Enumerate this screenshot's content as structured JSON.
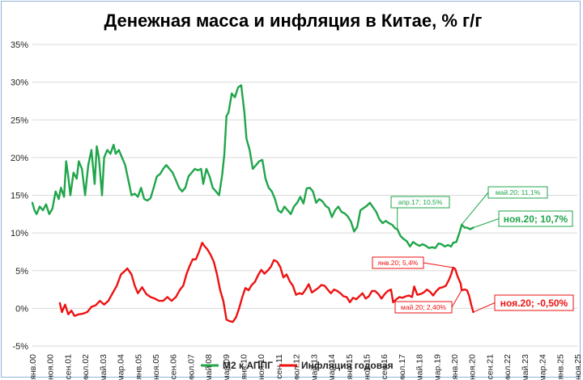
{
  "chart_data": {
    "type": "line",
    "title": "Денежная масса и инфляция в Китае, % г/г",
    "xlabel": "",
    "ylabel": "",
    "ylim": [
      -5,
      35
    ],
    "y_ticks": [
      "-5%",
      "0%",
      "5%",
      "10%",
      "15%",
      "20%",
      "25%",
      "30%",
      "35%"
    ],
    "x_ticks": [
      "янв.00",
      "ноя.00",
      "сен.01",
      "июл.02",
      "май.03",
      "мар.04",
      "янв.05",
      "ноя.05",
      "сен.06",
      "июл.07",
      "май.08",
      "мар.09",
      "янв.10",
      "ноя.10",
      "сен.11",
      "июл.12",
      "май.13",
      "мар.14",
      "янв.15",
      "ноя.15",
      "сен.16",
      "июл.17",
      "май.18",
      "мар.19",
      "янв.20",
      "ноя.20",
      "сен.21",
      "июл.22",
      "май.23",
      "мар.24",
      "янв.25",
      "ноя.25"
    ],
    "grid": true,
    "legend_position": "bottom",
    "colors": {
      "m2": "#1fa54a",
      "cpi": "#ee1111"
    },
    "series": [
      {
        "name": "М2 к АППГ",
        "points": [
          [
            2000.0,
            14.0
          ],
          [
            2000.1,
            13.0
          ],
          [
            2000.2,
            12.5
          ],
          [
            2000.35,
            13.5
          ],
          [
            2000.5,
            13.0
          ],
          [
            2000.65,
            13.8
          ],
          [
            2000.8,
            12.5
          ],
          [
            2000.95,
            13.2
          ],
          [
            2001.1,
            15.5
          ],
          [
            2001.25,
            14.5
          ],
          [
            2001.35,
            16.0
          ],
          [
            2001.5,
            14.8
          ],
          [
            2001.6,
            19.5
          ],
          [
            2001.7,
            17.5
          ],
          [
            2001.8,
            15.0
          ],
          [
            2001.95,
            18.0
          ],
          [
            2002.1,
            17.2
          ],
          [
            2002.2,
            19.5
          ],
          [
            2002.35,
            18.5
          ],
          [
            2002.5,
            15.0
          ],
          [
            2002.65,
            19.0
          ],
          [
            2002.8,
            21.0
          ],
          [
            2002.95,
            16.5
          ],
          [
            2003.05,
            21.5
          ],
          [
            2003.15,
            20.0
          ],
          [
            2003.3,
            15.0
          ],
          [
            2003.4,
            20.0
          ],
          [
            2003.55,
            21.0
          ],
          [
            2003.7,
            20.5
          ],
          [
            2003.85,
            21.7
          ],
          [
            2003.95,
            20.5
          ],
          [
            2004.1,
            21.0
          ],
          [
            2004.25,
            20.0
          ],
          [
            2004.4,
            19.0
          ],
          [
            2004.55,
            17.0
          ],
          [
            2004.7,
            15.0
          ],
          [
            2004.85,
            15.2
          ],
          [
            2005.0,
            14.8
          ],
          [
            2005.15,
            16.0
          ],
          [
            2005.3,
            14.5
          ],
          [
            2005.45,
            14.3
          ],
          [
            2005.6,
            14.6
          ],
          [
            2005.75,
            16.0
          ],
          [
            2005.9,
            17.5
          ],
          [
            2006.05,
            17.8
          ],
          [
            2006.2,
            18.5
          ],
          [
            2006.35,
            19.0
          ],
          [
            2006.5,
            18.5
          ],
          [
            2006.65,
            18.0
          ],
          [
            2006.8,
            17.0
          ],
          [
            2006.95,
            16.0
          ],
          [
            2007.1,
            15.5
          ],
          [
            2007.25,
            16.0
          ],
          [
            2007.4,
            17.5
          ],
          [
            2007.55,
            18.0
          ],
          [
            2007.7,
            18.5
          ],
          [
            2007.85,
            18.3
          ],
          [
            2008.0,
            18.5
          ],
          [
            2008.1,
            16.5
          ],
          [
            2008.25,
            18.5
          ],
          [
            2008.4,
            17.5
          ],
          [
            2008.55,
            16.0
          ],
          [
            2008.7,
            15.5
          ],
          [
            2008.85,
            15.0
          ],
          [
            2009.0,
            17.8
          ],
          [
            2009.1,
            20.5
          ],
          [
            2009.2,
            25.5
          ],
          [
            2009.3,
            26.0
          ],
          [
            2009.45,
            28.5
          ],
          [
            2009.6,
            28.0
          ],
          [
            2009.75,
            29.3
          ],
          [
            2009.9,
            29.6
          ],
          [
            2010.05,
            26.0
          ],
          [
            2010.15,
            22.5
          ],
          [
            2010.3,
            21.0
          ],
          [
            2010.45,
            18.5
          ],
          [
            2010.6,
            19.0
          ],
          [
            2010.75,
            19.5
          ],
          [
            2010.9,
            19.7
          ],
          [
            2011.05,
            17.2
          ],
          [
            2011.2,
            16.0
          ],
          [
            2011.35,
            15.5
          ],
          [
            2011.5,
            14.5
          ],
          [
            2011.65,
            13.0
          ],
          [
            2011.8,
            12.7
          ],
          [
            2011.95,
            13.5
          ],
          [
            2012.1,
            13.0
          ],
          [
            2012.25,
            12.5
          ],
          [
            2012.4,
            13.5
          ],
          [
            2012.55,
            14.0
          ],
          [
            2012.7,
            14.8
          ],
          [
            2012.85,
            13.9
          ],
          [
            2013.0,
            15.9
          ],
          [
            2013.15,
            16.0
          ],
          [
            2013.3,
            15.5
          ],
          [
            2013.45,
            14.0
          ],
          [
            2013.6,
            14.5
          ],
          [
            2013.75,
            14.2
          ],
          [
            2013.9,
            13.6
          ],
          [
            2014.05,
            13.3
          ],
          [
            2014.2,
            12.1
          ],
          [
            2014.35,
            13.0
          ],
          [
            2014.5,
            13.5
          ],
          [
            2014.65,
            12.8
          ],
          [
            2014.8,
            12.6
          ],
          [
            2014.95,
            12.2
          ],
          [
            2015.1,
            11.5
          ],
          [
            2015.25,
            10.2
          ],
          [
            2015.4,
            10.8
          ],
          [
            2015.55,
            13.0
          ],
          [
            2015.7,
            13.3
          ],
          [
            2015.85,
            13.6
          ],
          [
            2016.0,
            14.0
          ],
          [
            2016.15,
            13.4
          ],
          [
            2016.3,
            12.8
          ],
          [
            2016.45,
            11.8
          ],
          [
            2016.6,
            11.3
          ],
          [
            2016.75,
            11.6
          ],
          [
            2016.9,
            11.3
          ],
          [
            2017.05,
            11.1
          ],
          [
            2017.2,
            10.6
          ],
          [
            2017.3,
            10.5
          ],
          [
            2017.45,
            9.6
          ],
          [
            2017.6,
            9.2
          ],
          [
            2017.75,
            8.9
          ],
          [
            2017.9,
            8.2
          ],
          [
            2018.05,
            8.8
          ],
          [
            2018.2,
            8.5
          ],
          [
            2018.35,
            8.3
          ],
          [
            2018.5,
            8.5
          ],
          [
            2018.65,
            8.3
          ],
          [
            2018.8,
            8.0
          ],
          [
            2018.95,
            8.1
          ],
          [
            2019.1,
            8.0
          ],
          [
            2019.25,
            8.6
          ],
          [
            2019.4,
            8.5
          ],
          [
            2019.55,
            8.2
          ],
          [
            2019.7,
            8.4
          ],
          [
            2019.85,
            8.2
          ],
          [
            2019.95,
            8.7
          ],
          [
            2020.1,
            8.8
          ],
          [
            2020.25,
            10.1
          ],
          [
            2020.35,
            11.1
          ],
          [
            2020.5,
            10.7
          ],
          [
            2020.6,
            10.7
          ],
          [
            2020.75,
            10.5
          ],
          [
            2020.9,
            10.7
          ]
        ]
      },
      {
        "name": "Инфляция годовая",
        "points": [
          [
            2001.3,
            0.7
          ],
          [
            2001.4,
            -0.5
          ],
          [
            2001.55,
            0.5
          ],
          [
            2001.7,
            -0.8
          ],
          [
            2001.85,
            -0.3
          ],
          [
            2002.0,
            -1.0
          ],
          [
            2002.2,
            -0.8
          ],
          [
            2002.4,
            -0.7
          ],
          [
            2002.6,
            -0.5
          ],
          [
            2002.8,
            0.2
          ],
          [
            2003.0,
            0.4
          ],
          [
            2003.2,
            1.0
          ],
          [
            2003.4,
            0.5
          ],
          [
            2003.6,
            1.0
          ],
          [
            2003.8,
            2.0
          ],
          [
            2004.0,
            3.0
          ],
          [
            2004.2,
            4.5
          ],
          [
            2004.4,
            5.0
          ],
          [
            2004.5,
            5.3
          ],
          [
            2004.7,
            4.5
          ],
          [
            2004.85,
            3.0
          ],
          [
            2005.0,
            2.0
          ],
          [
            2005.2,
            2.8
          ],
          [
            2005.4,
            1.9
          ],
          [
            2005.6,
            1.5
          ],
          [
            2005.8,
            1.3
          ],
          [
            2006.0,
            1.0
          ],
          [
            2006.2,
            1.0
          ],
          [
            2006.4,
            1.5
          ],
          [
            2006.6,
            1.0
          ],
          [
            2006.8,
            1.5
          ],
          [
            2007.0,
            2.5
          ],
          [
            2007.15,
            3.0
          ],
          [
            2007.3,
            4.5
          ],
          [
            2007.45,
            5.6
          ],
          [
            2007.6,
            6.5
          ],
          [
            2007.75,
            6.5
          ],
          [
            2007.9,
            7.5
          ],
          [
            2008.05,
            8.7
          ],
          [
            2008.15,
            8.3
          ],
          [
            2008.3,
            7.8
          ],
          [
            2008.45,
            7.1
          ],
          [
            2008.6,
            6.2
          ],
          [
            2008.75,
            4.5
          ],
          [
            2008.9,
            2.4
          ],
          [
            2009.05,
            1.0
          ],
          [
            2009.2,
            -1.5
          ],
          [
            2009.35,
            -1.7
          ],
          [
            2009.5,
            -1.8
          ],
          [
            2009.65,
            -1.2
          ],
          [
            2009.8,
            0.0
          ],
          [
            2009.95,
            1.5
          ],
          [
            2010.1,
            2.7
          ],
          [
            2010.25,
            2.4
          ],
          [
            2010.4,
            3.1
          ],
          [
            2010.55,
            3.5
          ],
          [
            2010.7,
            4.4
          ],
          [
            2010.85,
            5.1
          ],
          [
            2011.0,
            4.6
          ],
          [
            2011.15,
            5.0
          ],
          [
            2011.3,
            5.5
          ],
          [
            2011.45,
            6.4
          ],
          [
            2011.6,
            6.2
          ],
          [
            2011.75,
            5.5
          ],
          [
            2011.9,
            4.1
          ],
          [
            2012.05,
            4.5
          ],
          [
            2012.2,
            3.6
          ],
          [
            2012.35,
            3.0
          ],
          [
            2012.5,
            1.8
          ],
          [
            2012.65,
            2.0
          ],
          [
            2012.8,
            1.9
          ],
          [
            2012.95,
            2.5
          ],
          [
            2013.1,
            3.2
          ],
          [
            2013.25,
            2.1
          ],
          [
            2013.4,
            2.4
          ],
          [
            2013.55,
            2.7
          ],
          [
            2013.7,
            3.1
          ],
          [
            2013.85,
            3.0
          ],
          [
            2014.0,
            2.5
          ],
          [
            2014.15,
            2.0
          ],
          [
            2014.3,
            2.5
          ],
          [
            2014.45,
            2.3
          ],
          [
            2014.6,
            2.0
          ],
          [
            2014.75,
            1.6
          ],
          [
            2014.9,
            1.5
          ],
          [
            2015.05,
            0.8
          ],
          [
            2015.2,
            1.4
          ],
          [
            2015.35,
            1.2
          ],
          [
            2015.5,
            1.6
          ],
          [
            2015.65,
            2.0
          ],
          [
            2015.8,
            1.3
          ],
          [
            2015.95,
            1.6
          ],
          [
            2016.1,
            2.3
          ],
          [
            2016.25,
            2.3
          ],
          [
            2016.4,
            1.9
          ],
          [
            2016.55,
            1.3
          ],
          [
            2016.7,
            1.9
          ],
          [
            2016.85,
            2.3
          ],
          [
            2017.0,
            2.5
          ],
          [
            2017.1,
            0.8
          ],
          [
            2017.25,
            1.2
          ],
          [
            2017.4,
            1.5
          ],
          [
            2017.55,
            1.4
          ],
          [
            2017.7,
            1.6
          ],
          [
            2017.85,
            1.7
          ],
          [
            2018.0,
            1.5
          ],
          [
            2018.1,
            2.9
          ],
          [
            2018.25,
            1.8
          ],
          [
            2018.4,
            1.9
          ],
          [
            2018.55,
            2.1
          ],
          [
            2018.7,
            2.5
          ],
          [
            2018.85,
            2.2
          ],
          [
            2019.0,
            1.7
          ],
          [
            2019.15,
            2.3
          ],
          [
            2019.3,
            2.7
          ],
          [
            2019.45,
            2.8
          ],
          [
            2019.6,
            3.0
          ],
          [
            2019.75,
            3.8
          ],
          [
            2019.85,
            4.5
          ],
          [
            2019.95,
            5.4
          ],
          [
            2020.05,
            5.2
          ],
          [
            2020.15,
            4.3
          ],
          [
            2020.3,
            3.3
          ],
          [
            2020.35,
            2.4
          ],
          [
            2020.5,
            2.5
          ],
          [
            2020.6,
            2.4
          ],
          [
            2020.7,
            1.7
          ],
          [
            2020.8,
            0.5
          ],
          [
            2020.9,
            -0.5
          ]
        ]
      }
    ],
    "annotations": [
      {
        "text": "апр.17; 10,5%",
        "series": "М2 к АППГ",
        "x": 2017.3,
        "y": 10.5
      },
      {
        "text": "май.20; 11,1%",
        "series": "М2 к АППГ",
        "x": 2020.35,
        "y": 11.1
      },
      {
        "text": "ноя.20; 10,7%",
        "series": "М2 к АППГ",
        "x": 2020.9,
        "y": 10.7
      },
      {
        "text": "янв.20; 5,4%",
        "series": "Инфляция годовая",
        "x": 2019.95,
        "y": 5.4
      },
      {
        "text": "май.20; 2,40%",
        "series": "Инфляция годовая",
        "x": 2020.35,
        "y": 2.4
      },
      {
        "text": "ноя.20; -0,50%",
        "series": "Инфляция годовая",
        "x": 2020.9,
        "y": -0.5
      }
    ]
  }
}
